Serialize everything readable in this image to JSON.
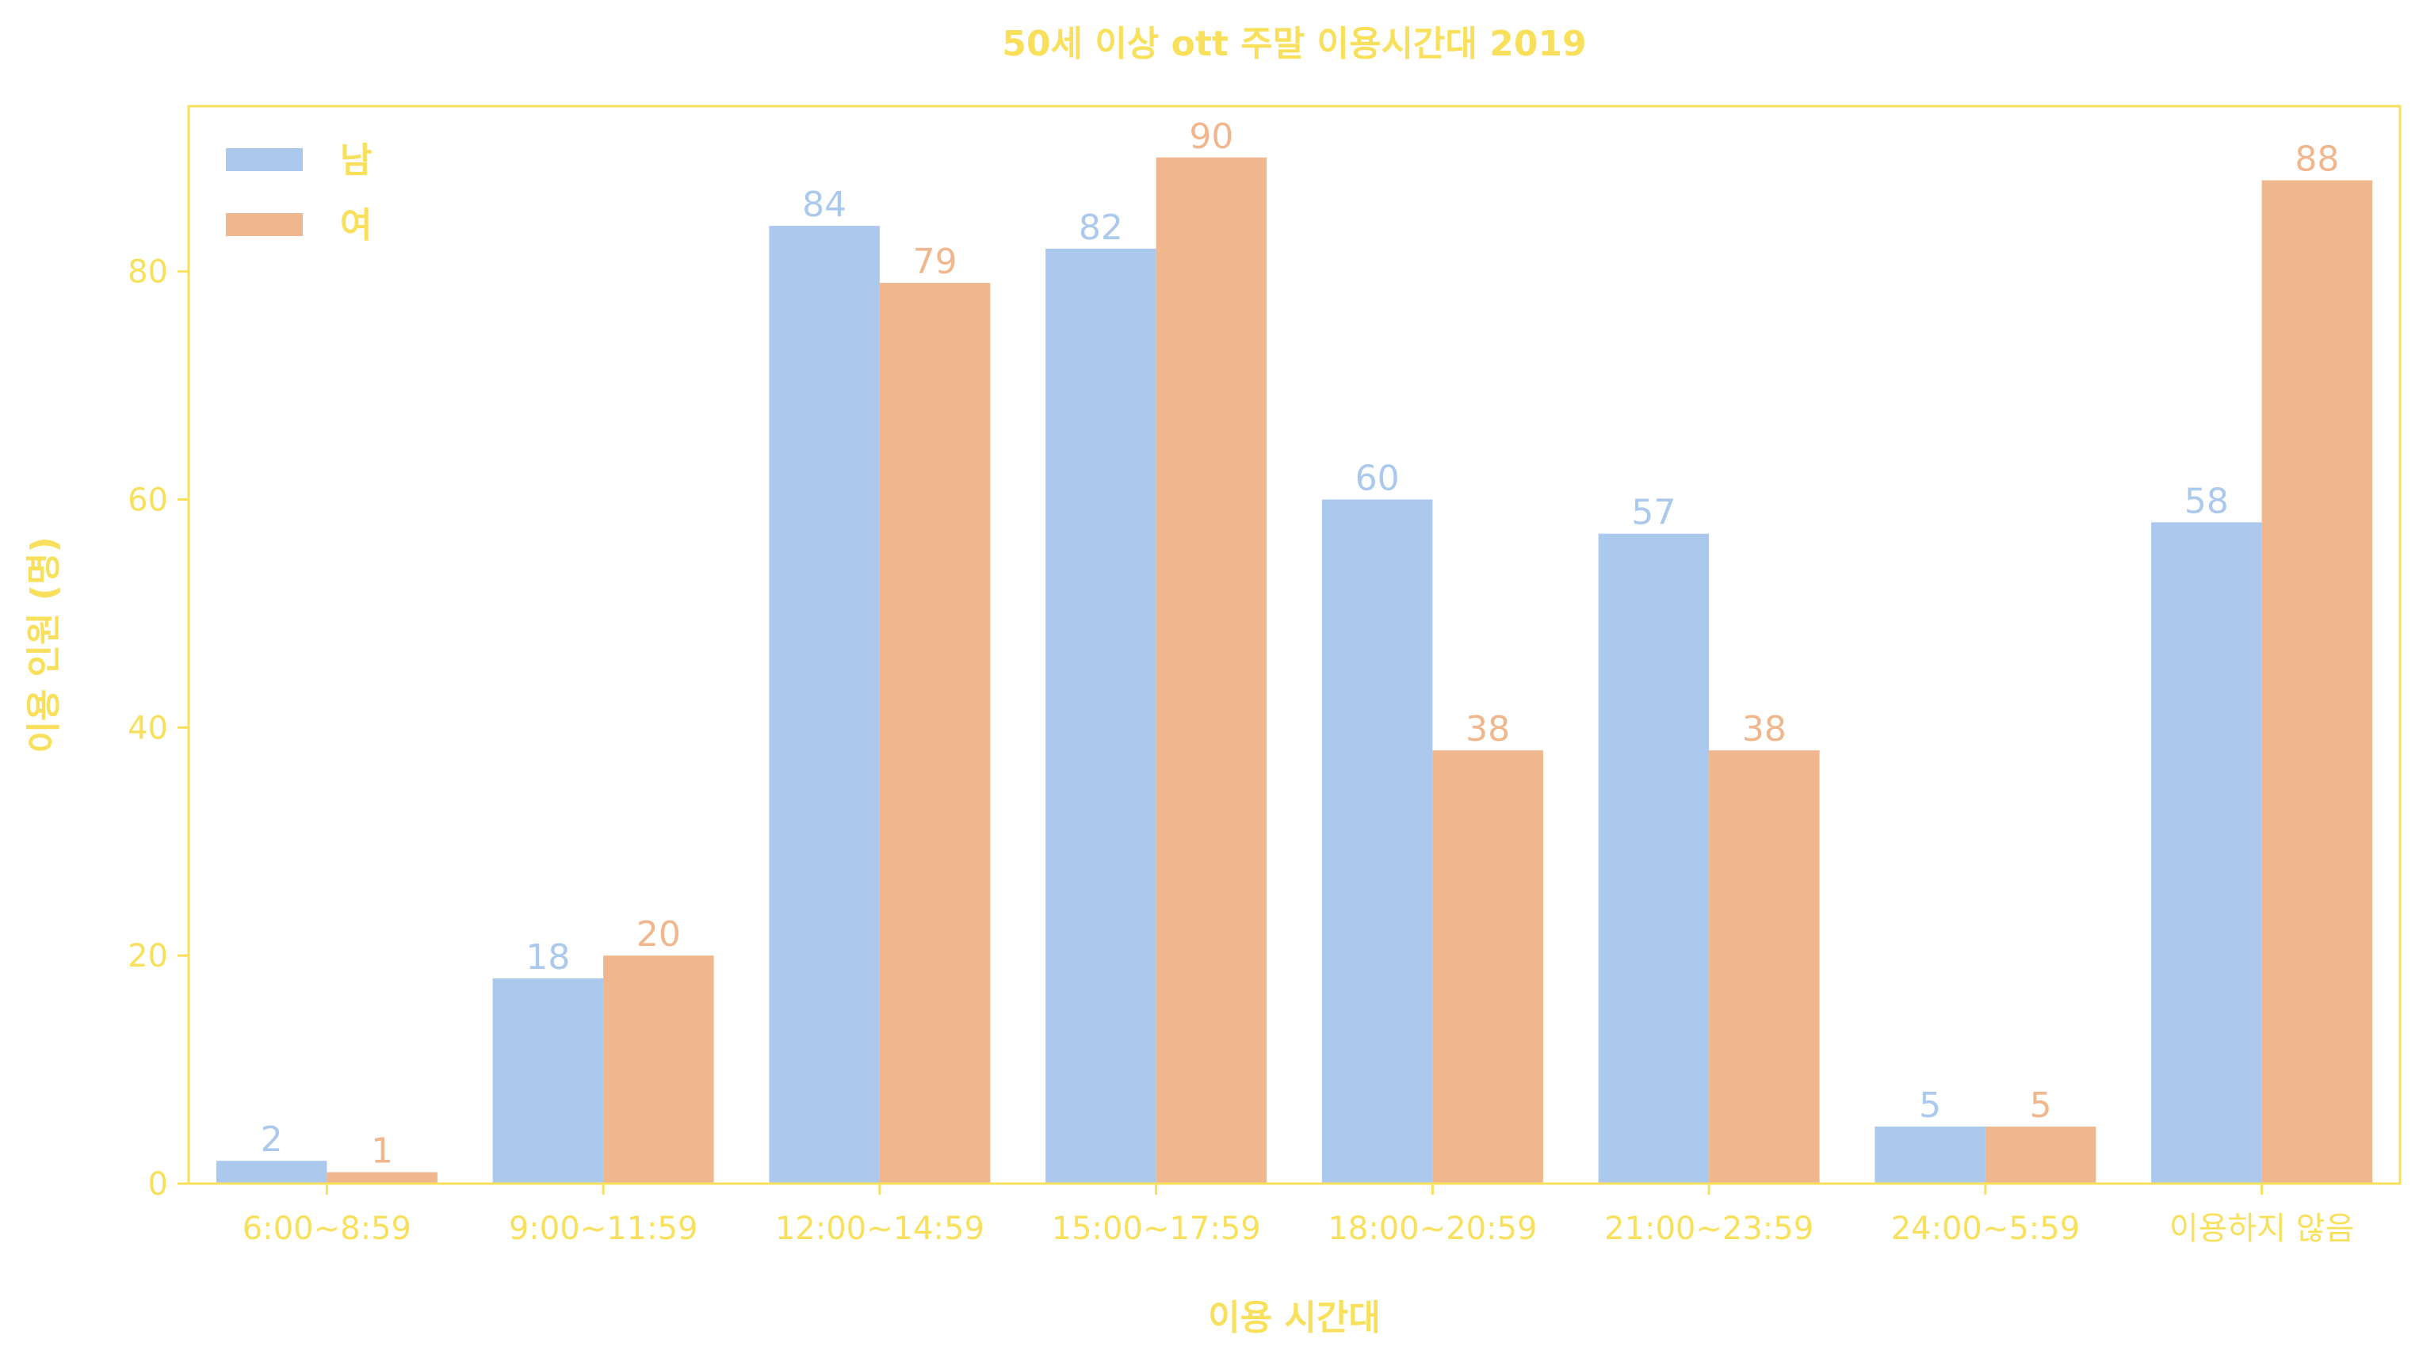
{
  "colors": {
    "text": "#f9e05c",
    "series_male": "#abc9ec",
    "series_female": "#f0b78e"
  },
  "chart_data": {
    "type": "bar",
    "title": "50세 이상 ott 주말 이용시간대 2019",
    "xlabel": "이용 시간대",
    "ylabel": "이용 인원 (명)",
    "categories": [
      "6:00~8:59",
      "9:00~11:59",
      "12:00~14:59",
      "15:00~17:59",
      "18:00~20:59",
      "21:00~23:59",
      "24:00~5:59",
      "이용하지 않음"
    ],
    "series": [
      {
        "name": "남",
        "color": "#abc9ec",
        "values": [
          2,
          18,
          84,
          82,
          60,
          57,
          5,
          58
        ]
      },
      {
        "name": "여",
        "color": "#f0b78e",
        "values": [
          1,
          20,
          79,
          90,
          38,
          38,
          5,
          88
        ]
      }
    ],
    "ylim": [
      0,
      94.5
    ],
    "yticks": [
      0,
      20,
      40,
      60,
      80
    ],
    "grid": false,
    "legend": {
      "position": "upper-left"
    },
    "data_labels": true
  }
}
